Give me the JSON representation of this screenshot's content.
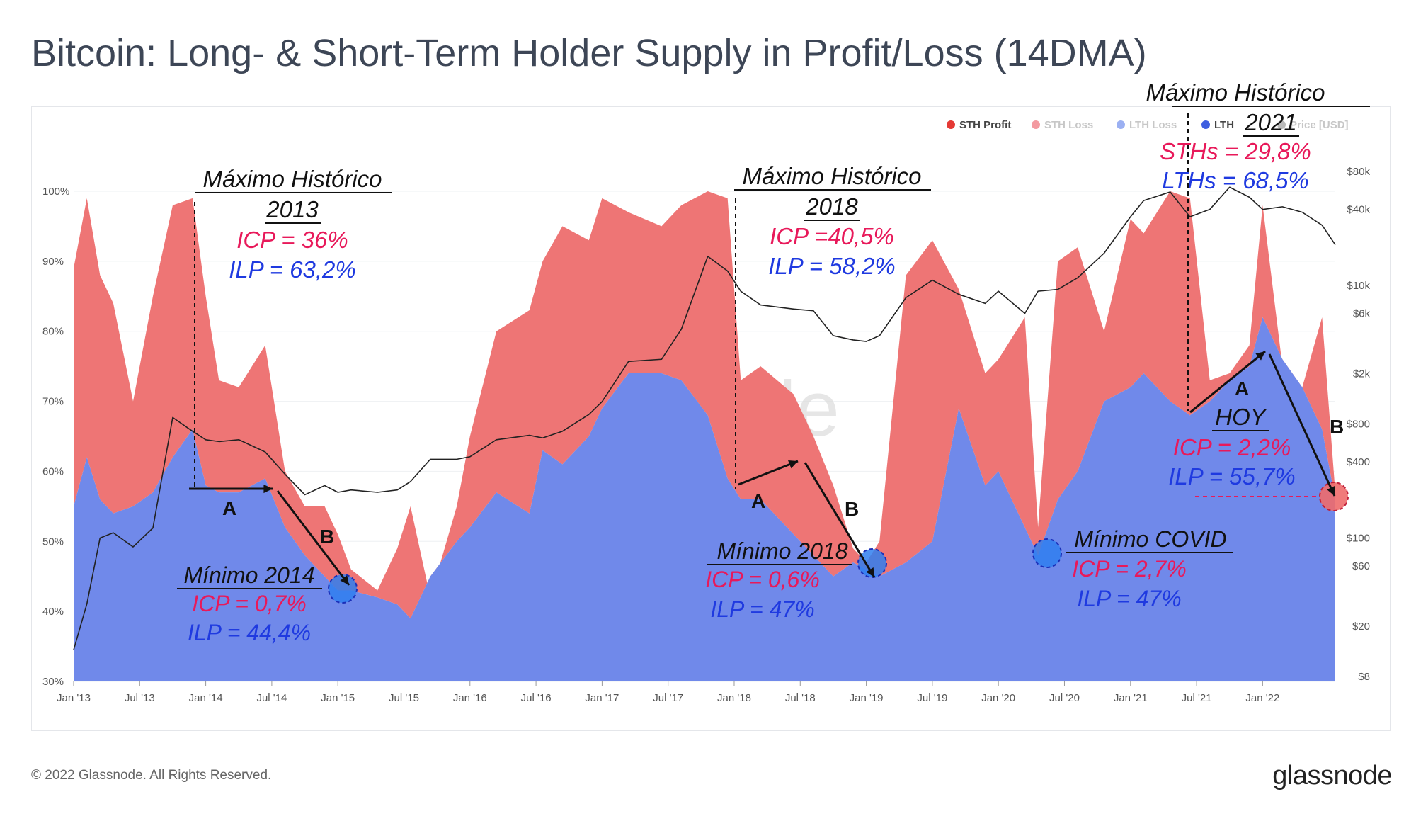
{
  "title": "Bitcoin: Long- & Short-Term Holder Supply in Profit/Loss (14DMA)",
  "footer": "© 2022 Glassnode. All Rights Reserved.",
  "brand": "glassnode",
  "watermark": "glassnode",
  "colors": {
    "sth_profit": "#ee7575",
    "lth_profit": "#7089ea",
    "price": "#222222",
    "accent_red": "#e8195a",
    "accent_blue": "#1f3ae0"
  },
  "chart_data": {
    "type": "area",
    "x_ticks": [
      "Jan '13",
      "Jul '13",
      "Jan '14",
      "Jul '14",
      "Jan '15",
      "Jul '15",
      "Jan '16",
      "Jul '16",
      "Jan '17",
      "Jul '17",
      "Jan '18",
      "Jul '18",
      "Jan '19",
      "Jul '19",
      "Jan '20",
      "Jul '20",
      "Jan '21",
      "Jul '21",
      "Jan '22"
    ],
    "y_left_ticks": [
      "100%",
      "90%",
      "80%",
      "70%",
      "60%",
      "50%",
      "40%",
      "30%"
    ],
    "y_left_range": [
      30,
      100
    ],
    "y_right_ticks": [
      "$80k",
      "$40k",
      "$10k",
      "$6k",
      "$2k",
      "$800",
      "$400",
      "$100",
      "$60",
      "$20",
      "$8"
    ],
    "y_right_values": [
      80000,
      40000,
      10000,
      6000,
      2000,
      800,
      400,
      100,
      60,
      20,
      8
    ],
    "y_right_scale": "log",
    "legend_position": "top-right",
    "legend": [
      {
        "label": "STH Profit",
        "color": "#e53935"
      },
      {
        "label": "STH Loss",
        "color": "#f39aa0"
      },
      {
        "label": "LTH Loss",
        "color": "#9bb0f2"
      },
      {
        "label": "LTH",
        "color": "#3f5fe0"
      },
      {
        "label": "Price [USD]",
        "color": "#bbbbbb"
      }
    ],
    "x": [
      2013.0,
      2013.1,
      2013.2,
      2013.3,
      2013.45,
      2013.6,
      2013.75,
      2013.9,
      2014.0,
      2014.1,
      2014.25,
      2014.45,
      2014.6,
      2014.75,
      2014.9,
      2015.0,
      2015.1,
      2015.3,
      2015.45,
      2015.55,
      2015.7,
      2015.9,
      2016.0,
      2016.2,
      2016.45,
      2016.55,
      2016.7,
      2016.9,
      2017.0,
      2017.2,
      2017.45,
      2017.6,
      2017.8,
      2017.95,
      2018.05,
      2018.2,
      2018.45,
      2018.6,
      2018.75,
      2018.9,
      2019.0,
      2019.1,
      2019.3,
      2019.5,
      2019.7,
      2019.9,
      2020.0,
      2020.2,
      2020.3,
      2020.45,
      2020.6,
      2020.8,
      2021.0,
      2021.1,
      2021.3,
      2021.45,
      2021.6,
      2021.75,
      2021.9,
      2022.0,
      2022.15,
      2022.3,
      2022.45,
      2022.55
    ],
    "series": [
      {
        "name": "LTH Profit",
        "values": [
          55,
          62,
          56,
          54,
          55,
          57,
          62,
          66,
          58,
          57,
          57,
          59,
          52,
          48,
          45,
          43,
          43,
          42,
          41,
          39,
          45,
          50,
          52,
          57,
          54,
          63,
          61,
          65,
          69,
          74,
          74,
          73,
          68,
          59,
          56,
          56,
          51,
          48,
          45,
          47,
          46,
          45,
          47,
          50,
          69,
          58,
          60,
          52,
          48,
          56,
          60,
          70,
          72,
          74,
          70,
          68,
          70,
          73,
          75,
          82,
          76,
          72,
          66,
          56
        ]
      },
      {
        "name": "STH Profit",
        "values": [
          89,
          99,
          88,
          84,
          70,
          85,
          98,
          99,
          85,
          73,
          72,
          78,
          60,
          55,
          55,
          51,
          46,
          43,
          49,
          55,
          42,
          55,
          65,
          80,
          83,
          90,
          95,
          93,
          99,
          97,
          95,
          98,
          100,
          99,
          73,
          75,
          71,
          65,
          58,
          49,
          47,
          50,
          88,
          93,
          86,
          74,
          76,
          82,
          52,
          90,
          92,
          80,
          96,
          94,
          100,
          99,
          73,
          74,
          78,
          98,
          75,
          72,
          82,
          57
        ]
      },
      {
        "name": "Price [USD]",
        "values": [
          13,
          30,
          100,
          110,
          85,
          120,
          900,
          700,
          600,
          580,
          600,
          480,
          320,
          220,
          260,
          230,
          240,
          230,
          240,
          280,
          420,
          420,
          440,
          600,
          650,
          620,
          700,
          950,
          1200,
          2500,
          2600,
          4500,
          17000,
          13000,
          9000,
          7000,
          6500,
          6300,
          4000,
          3700,
          3600,
          4000,
          8000,
          11000,
          8500,
          7200,
          9000,
          6000,
          9000,
          9300,
          11500,
          18000,
          35000,
          47000,
          55000,
          35000,
          40000,
          60000,
          50000,
          40000,
          42000,
          38000,
          30000,
          21000
        ]
      }
    ],
    "annotations": [
      {
        "title": "Máximo Histórico 2013",
        "red": "ICP = 36%",
        "blue": "ILP = 63,2%"
      },
      {
        "title": "Mínimo 2014",
        "red": "ICP = 0,7%",
        "blue": "ILP = 44,4%"
      },
      {
        "title": "Máximo Histórico 2018",
        "red": "ICP =40,5%",
        "blue": "ILP = 58,2%"
      },
      {
        "title": "Mínimo 2018",
        "red": "ICP = 0,6%",
        "blue": "ILP = 47%"
      },
      {
        "title": "Mínimo COVID",
        "red": "ICP = 2,7%",
        "blue": "ILP = 47%"
      },
      {
        "title": "Máximo Histórico 2021",
        "red": "STHs = 29,8%",
        "blue": "LTHs = 68,5%"
      },
      {
        "title": "HOY",
        "red": "ICP = 2,2%",
        "blue": "ILP = 55,7%"
      }
    ],
    "phase_labels": [
      "A",
      "B",
      "A",
      "B",
      "A",
      "B"
    ]
  }
}
